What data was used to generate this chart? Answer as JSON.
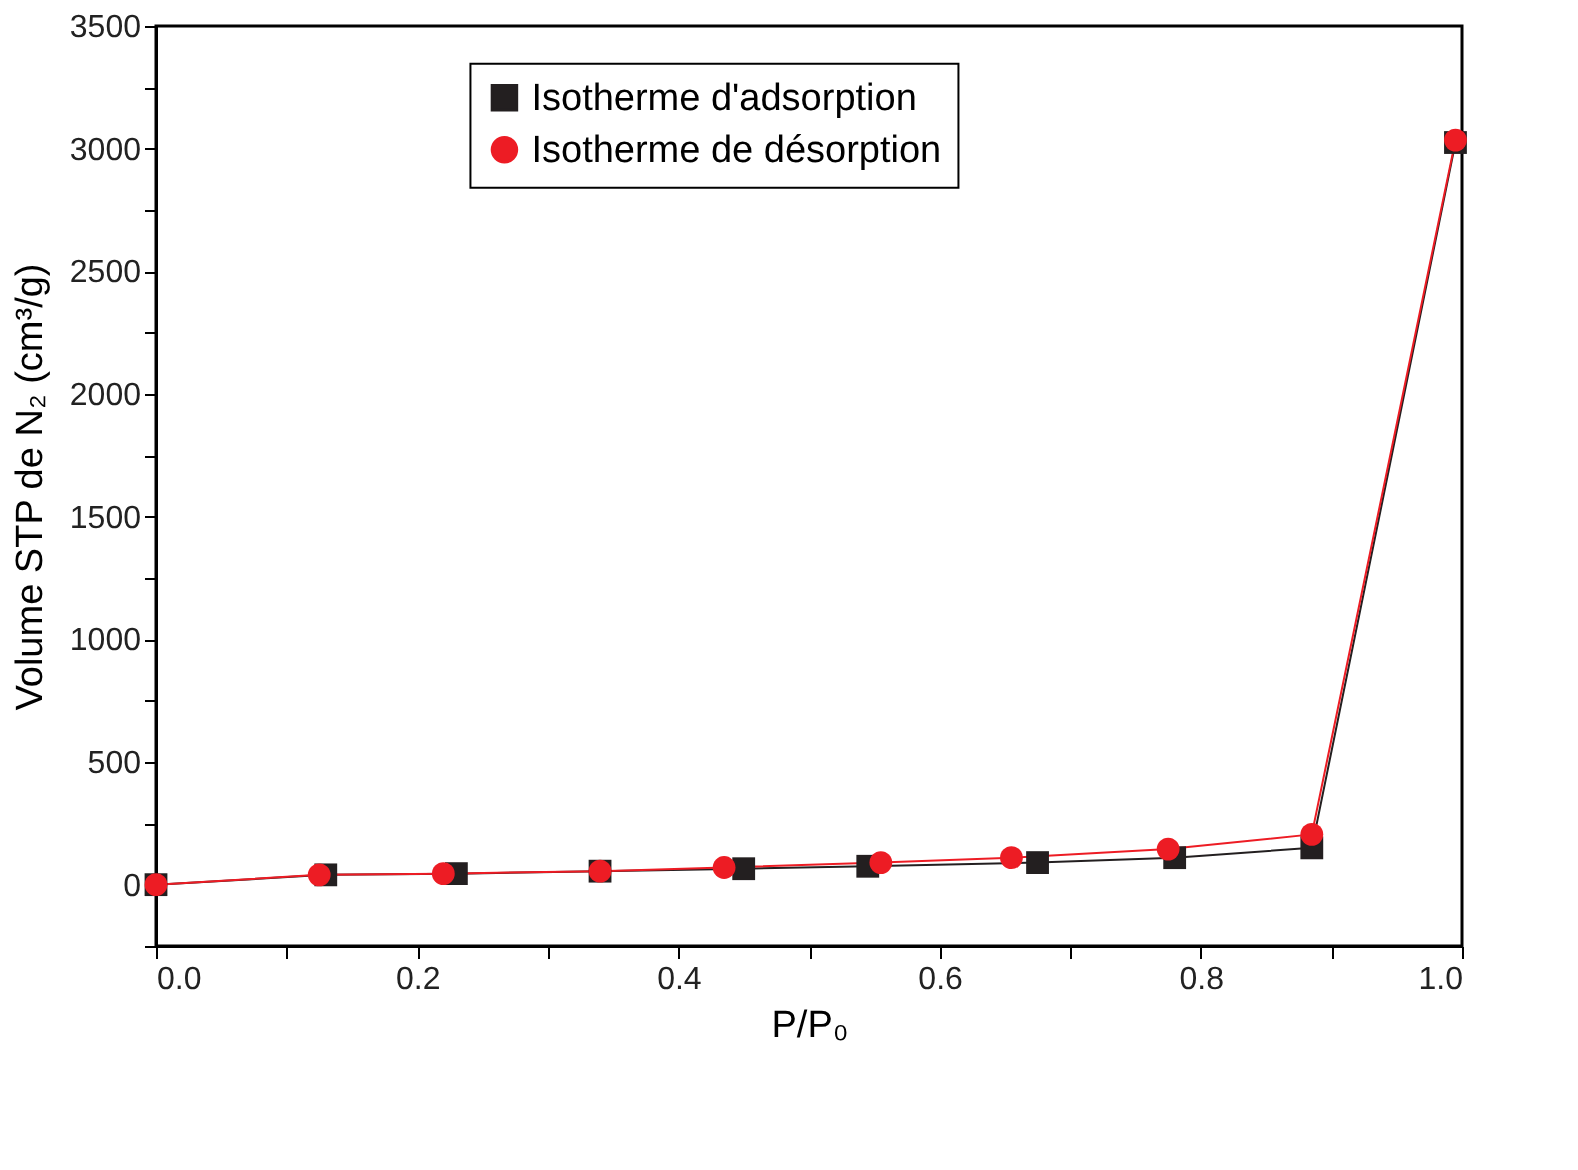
{
  "chart_data": {
    "type": "line",
    "xlabel": "P/P₀",
    "ylabel": "Volume STP de N₂ (cm³/g)",
    "xlim": [
      0,
      1.0
    ],
    "ylim": [
      -250,
      3500
    ],
    "xticks": [
      {
        "value": 0,
        "label": "0.0"
      },
      {
        "value": 0.1,
        "label": null
      },
      {
        "value": 0.2,
        "label": "0.2"
      },
      {
        "value": 0.3,
        "label": null
      },
      {
        "value": 0.4,
        "label": "0.4"
      },
      {
        "value": 0.5,
        "label": null
      },
      {
        "value": 0.6,
        "label": "0.6"
      },
      {
        "value": 0.7,
        "label": null
      },
      {
        "value": 0.8,
        "label": "0.8"
      },
      {
        "value": 0.9,
        "label": null
      },
      {
        "value": 1.0,
        "label": "1.0"
      }
    ],
    "yticks": [
      {
        "value": -250,
        "label": null
      },
      0,
      {
        "value": 250,
        "label": null
      },
      500,
      {
        "value": 750,
        "label": null
      },
      1000,
      {
        "value": 1250,
        "label": null
      },
      1500,
      {
        "value": 1750,
        "label": null
      },
      2000,
      {
        "value": 2250,
        "label": null
      },
      2500,
      {
        "value": 2750,
        "label": null
      },
      3000,
      {
        "value": 3250,
        "label": null
      },
      3500
    ],
    "grid": false,
    "legend": "top",
    "line_style": "solid",
    "series": [
      {
        "name": "Isotherme d'adsorption",
        "color": "#231f20",
        "marker": "square",
        "x": [
          0.0,
          0.13,
          0.23,
          0.34,
          0.45,
          0.545,
          0.675,
          0.78,
          0.885,
          0.995
        ],
        "values": [
          0,
          40,
          45,
          55,
          65,
          75,
          90,
          110,
          150,
          3025
        ]
      },
      {
        "name": "Isotherme de désorption",
        "color": "#ed1c24",
        "marker": "circle",
        "x": [
          0.0,
          0.125,
          0.22,
          0.34,
          0.435,
          0.555,
          0.655,
          0.775,
          0.885,
          0.995
        ],
        "values": [
          0,
          40,
          45,
          55,
          70,
          90,
          110,
          145,
          205,
          3035
        ]
      }
    ]
  }
}
